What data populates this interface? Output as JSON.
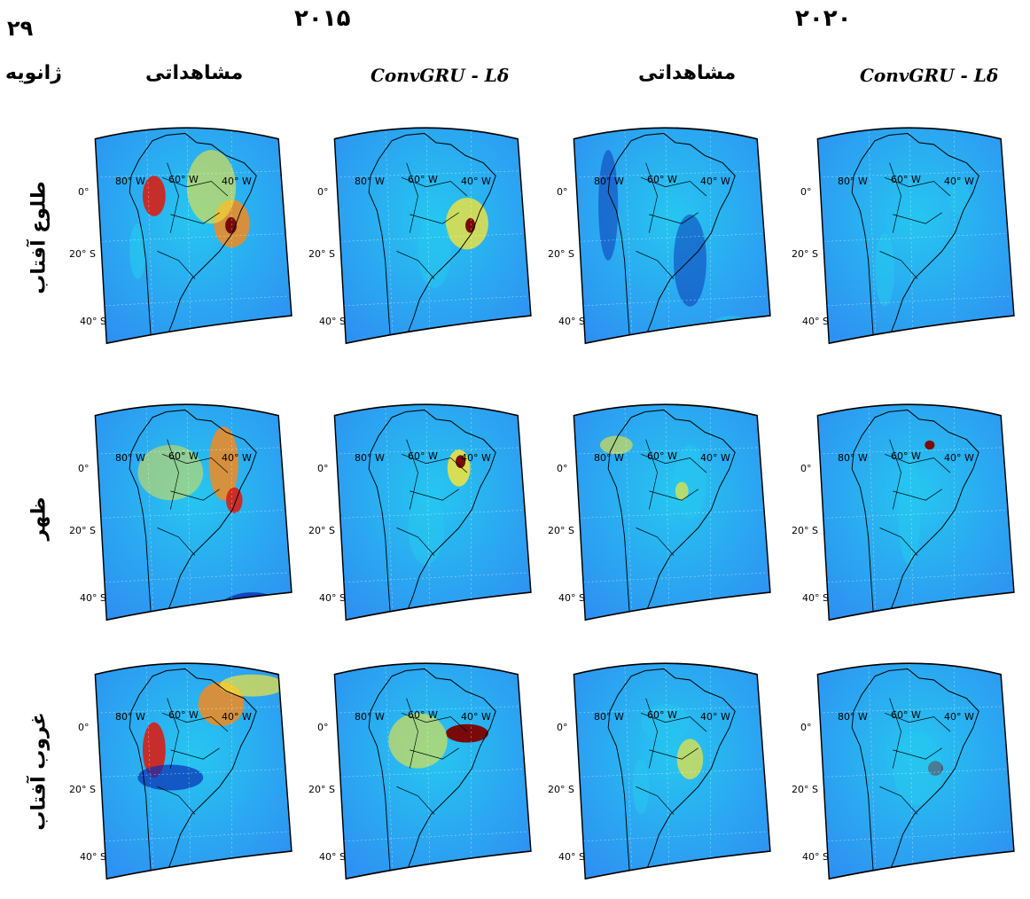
{
  "headers": {
    "year_left": "۲۰۱۵",
    "year_right": "۲۰۲۰",
    "date_number": "۲۹",
    "date_month": "ژانویه"
  },
  "columns": [
    {
      "label": "مشاهداتی",
      "year": "۲۰۱۵",
      "kind": "observed"
    },
    {
      "label": "ConvGRU - Lδ",
      "year": "۲۰۱۵",
      "kind": "model"
    },
    {
      "label": "مشاهداتی",
      "year": "۲۰۲۰",
      "kind": "observed"
    },
    {
      "label": "ConvGRU - Lδ",
      "year": "۲۰۲۰",
      "kind": "model"
    }
  ],
  "rows": [
    {
      "label": "طلوع آفتاب"
    },
    {
      "label": "ظهر"
    },
    {
      "label": "غروب آفتاب"
    }
  ],
  "map_labels": {
    "lat_0": "0°",
    "lat_20s": "20° S",
    "lat_40s": "40° S",
    "lon_80w": "80° W",
    "lon_60w": "60° W",
    "lon_40w": "40° W"
  },
  "colors": {
    "base": "#2f8bf2",
    "low": "#0a2fb0",
    "cyan": "#26c6f0",
    "yellow": "#f4e43a",
    "orange": "#f38a1e",
    "red": "#d61f14",
    "darkred": "#7a0a0a"
  }
}
